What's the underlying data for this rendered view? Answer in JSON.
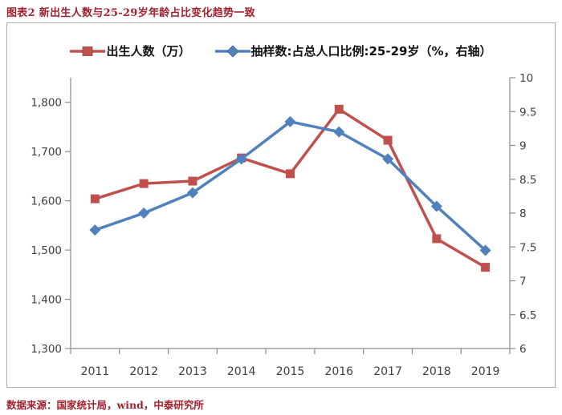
{
  "page": {
    "title": "图表2 新出生人数与25-29岁年龄占比变化趋势一致",
    "source": "数据来源：国家统计局，wind，中泰研究所"
  },
  "chart_data": {
    "type": "line",
    "title": "图表2 新出生人数与25-29岁年龄占比变化趋势一致",
    "categories": [
      "2011",
      "2012",
      "2013",
      "2014",
      "2015",
      "2016",
      "2017",
      "2018",
      "2019"
    ],
    "series": [
      {
        "name": "出生人数（万）",
        "axis": "left",
        "color": "#C0504D",
        "marker": "square",
        "values": [
          1604,
          1635,
          1640,
          1687,
          1655,
          1786,
          1723,
          1523,
          1465
        ]
      },
      {
        "name": "抽样数:占总人口比例:25-29岁（%，右轴）",
        "axis": "right",
        "color": "#4F81BD",
        "marker": "diamond",
        "values": [
          7.75,
          8.0,
          8.3,
          8.8,
          9.35,
          9.2,
          8.8,
          8.1,
          7.45
        ]
      }
    ],
    "left_axis": {
      "min": 1300,
      "max": 1850,
      "tick_values": [
        1300,
        1400,
        1500,
        1600,
        1700,
        1800
      ],
      "ticks": [
        "1,300",
        "1,400",
        "1,500",
        "1,600",
        "1,700",
        "1,800"
      ]
    },
    "right_axis": {
      "min": 6,
      "max": 10,
      "tick_values": [
        6,
        6.5,
        7,
        7.5,
        8,
        8.5,
        9,
        9.5,
        10
      ],
      "ticks": [
        "6",
        "6.5",
        "7",
        "7.5",
        "8",
        "8.5",
        "9",
        "9.5",
        "10"
      ]
    },
    "grid": false,
    "legend_position": "top"
  }
}
